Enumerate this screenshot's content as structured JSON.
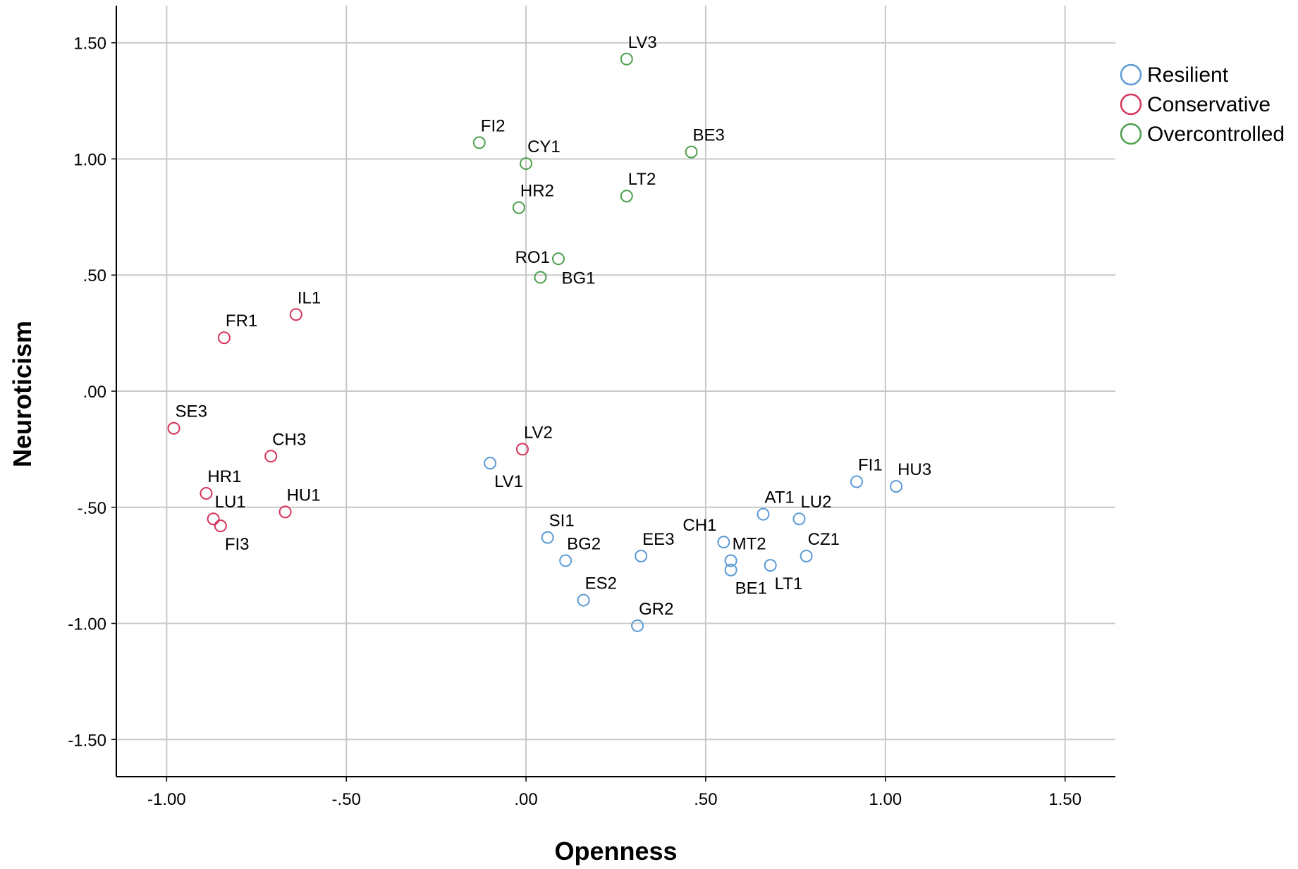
{
  "chart_data": {
    "type": "scatter",
    "title": "",
    "xlabel": "Openness",
    "ylabel": "Neuroticism",
    "xlim": [
      -1.14,
      1.64
    ],
    "ylim": [
      -1.66,
      1.66
    ],
    "x_ticks": [
      -1.0,
      -0.5,
      0.0,
      0.5,
      1.0,
      1.5
    ],
    "x_tick_labels": [
      "-1.00",
      "-.50",
      ".00",
      ".50",
      "1.00",
      "1.50"
    ],
    "y_ticks": [
      1.5,
      1.0,
      0.5,
      0.0,
      -0.5,
      -1.0,
      -1.5
    ],
    "y_tick_labels": [
      "1.50",
      "1.00",
      ".50",
      ".00",
      "-.50",
      "-1.00",
      "-1.50"
    ],
    "grid": true,
    "legend_position": "top-right",
    "series": [
      {
        "name": "Resilient",
        "color": "#5b9bd5",
        "marker": "open-circle",
        "points": [
          {
            "label": "LV1",
            "x": -0.1,
            "y": -0.31,
            "label_pos": "below-right"
          },
          {
            "label": "SI1",
            "x": 0.06,
            "y": -0.63,
            "label_pos": "above-right"
          },
          {
            "label": "BG2",
            "x": 0.11,
            "y": -0.73,
            "label_pos": "above-right"
          },
          {
            "label": "ES2",
            "x": 0.16,
            "y": -0.9,
            "label_pos": "above-right"
          },
          {
            "label": "EE3",
            "x": 0.32,
            "y": -0.71,
            "label_pos": "above-right"
          },
          {
            "label": "GR2",
            "x": 0.31,
            "y": -1.01,
            "label_pos": "above-right"
          },
          {
            "label": "CH1",
            "x": 0.55,
            "y": -0.65,
            "label_pos": "above-left"
          },
          {
            "label": "MT2",
            "x": 0.57,
            "y": -0.73,
            "label_pos": "above-right"
          },
          {
            "label": "BE1",
            "x": 0.57,
            "y": -0.77,
            "label_pos": "below-right"
          },
          {
            "label": "AT1",
            "x": 0.66,
            "y": -0.53,
            "label_pos": "above-right"
          },
          {
            "label": "LT1",
            "x": 0.68,
            "y": -0.75,
            "label_pos": "below-right"
          },
          {
            "label": "LU2",
            "x": 0.76,
            "y": -0.55,
            "label_pos": "above-right"
          },
          {
            "label": "CZ1",
            "x": 0.78,
            "y": -0.71,
            "label_pos": "above-right"
          },
          {
            "label": "FI1",
            "x": 0.92,
            "y": -0.39,
            "label_pos": "above-right"
          },
          {
            "label": "HU3",
            "x": 1.03,
            "y": -0.41,
            "label_pos": "above-right"
          }
        ]
      },
      {
        "name": "Conservative",
        "color": "#d6335a",
        "marker": "open-circle",
        "points": [
          {
            "label": "SE3",
            "x": -0.98,
            "y": -0.16,
            "label_pos": "above-right"
          },
          {
            "label": "FR1",
            "x": -0.84,
            "y": 0.23,
            "label_pos": "above-right"
          },
          {
            "label": "IL1",
            "x": -0.64,
            "y": 0.33,
            "label_pos": "above-right"
          },
          {
            "label": "CH3",
            "x": -0.71,
            "y": -0.28,
            "label_pos": "above-right"
          },
          {
            "label": "HR1",
            "x": -0.89,
            "y": -0.44,
            "label_pos": "above-right"
          },
          {
            "label": "LU1",
            "x": -0.87,
            "y": -0.55,
            "label_pos": "above-right"
          },
          {
            "label": "FI3",
            "x": -0.85,
            "y": -0.58,
            "label_pos": "below-right"
          },
          {
            "label": "HU1",
            "x": -0.67,
            "y": -0.52,
            "label_pos": "above-right"
          },
          {
            "label": "LV2",
            "x": -0.01,
            "y": -0.25,
            "label_pos": "above-right"
          }
        ]
      },
      {
        "name": "Overcontrolled",
        "color": "#4ea04e",
        "marker": "open-circle",
        "points": [
          {
            "label": "LV3",
            "x": 0.28,
            "y": 1.43,
            "label_pos": "above-right"
          },
          {
            "label": "FI2",
            "x": -0.13,
            "y": 1.07,
            "label_pos": "above-right"
          },
          {
            "label": "CY1",
            "x": 0.0,
            "y": 0.98,
            "label_pos": "above-right"
          },
          {
            "label": "BE3",
            "x": 0.46,
            "y": 1.03,
            "label_pos": "above-right"
          },
          {
            "label": "HR2",
            "x": -0.02,
            "y": 0.79,
            "label_pos": "above-right"
          },
          {
            "label": "LT2",
            "x": 0.28,
            "y": 0.84,
            "label_pos": "above-right"
          },
          {
            "label": "RO1",
            "x": 0.09,
            "y": 0.57,
            "label_pos": "left"
          },
          {
            "label": "BG1",
            "x": 0.04,
            "y": 0.49,
            "label_pos": "right"
          }
        ]
      }
    ]
  }
}
